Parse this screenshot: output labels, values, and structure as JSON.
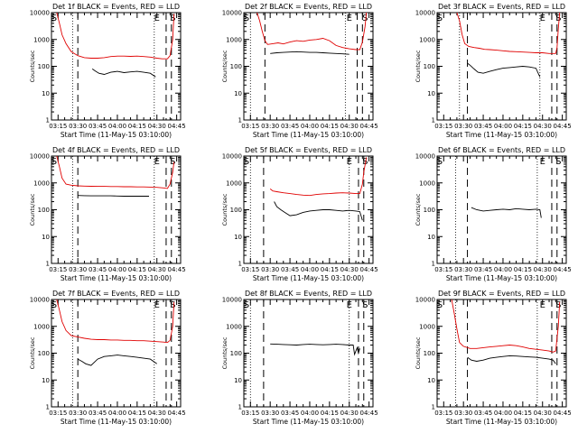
{
  "chart_data": [
    {
      "type": "line",
      "title": "Det 1f BLACK = Events, RED = LLD",
      "xlabel": "Start Time (11-May-15 03:10:00)",
      "ylabel": "Counts/sec",
      "x_tick_labels": [
        "03:15",
        "03:30",
        "03:45",
        "04:00",
        "04:15",
        "04:30",
        "04:45"
      ],
      "y_tick_labels": [
        "1",
        "10",
        "100",
        "1000",
        "10000"
      ],
      "yscale": "log",
      "ylim": [
        1,
        10000
      ],
      "markers": [
        "S",
        "E",
        "S"
      ],
      "series": [
        {
          "name": "Events",
          "color": "#000000",
          "x": [
            "03:41",
            "03:43",
            "03:46",
            "03:50",
            "03:55",
            "04:00",
            "04:05",
            "04:10",
            "04:15",
            "04:20",
            "04:25",
            "04:29"
          ],
          "values": [
            80,
            68,
            55,
            50,
            60,
            65,
            58,
            62,
            65,
            60,
            55,
            40
          ]
        },
        {
          "name": "LLD",
          "color": "#e00000",
          "x": [
            "03:14",
            "03:16",
            "03:18",
            "03:21",
            "03:25",
            "03:30",
            "03:35",
            "03:40",
            "03:45",
            "03:50",
            "03:55",
            "04:00",
            "04:05",
            "04:10",
            "04:15",
            "04:20",
            "04:25",
            "04:30",
            "04:34",
            "04:38",
            "04:40",
            "04:42",
            "04:43"
          ],
          "values": [
            10000,
            4000,
            1500,
            700,
            350,
            250,
            210,
            200,
            200,
            210,
            230,
            240,
            240,
            235,
            240,
            230,
            220,
            200,
            190,
            190,
            250,
            1000,
            9000
          ]
        }
      ]
    },
    {
      "type": "line",
      "title": "Det 2f BLACK = Events, RED = LLD",
      "xlabel": "Start Time (11-May-15 03:10:00)",
      "ylabel": "Counts/sec",
      "x_tick_labels": [
        "03:15",
        "03:30",
        "03:45",
        "04:00",
        "04:15",
        "04:30",
        "04:45"
      ],
      "y_tick_labels": [
        "1",
        "10",
        "100",
        "1000",
        "10000"
      ],
      "yscale": "log",
      "ylim": [
        1,
        10000
      ],
      "markers": [
        "S",
        "E",
        "S"
      ],
      "series": [
        {
          "name": "Events",
          "color": "#000000",
          "x": [
            "03:30",
            "03:35",
            "03:40",
            "03:45",
            "03:50",
            "03:55",
            "04:00",
            "04:05",
            "04:10",
            "04:15",
            "04:20",
            "04:25",
            "04:30"
          ],
          "values": [
            300,
            320,
            330,
            340,
            350,
            340,
            330,
            330,
            320,
            310,
            300,
            290,
            280
          ]
        },
        {
          "name": "LLD",
          "color": "#e00000",
          "x": [
            "03:20",
            "03:22",
            "03:24",
            "03:26",
            "03:28",
            "03:32",
            "03:36",
            "03:40",
            "03:45",
            "03:50",
            "03:55",
            "04:00",
            "04:05",
            "04:10",
            "04:15",
            "04:20",
            "04:25",
            "04:30",
            "04:35",
            "04:38",
            "04:40",
            "04:42",
            "04:43"
          ],
          "values": [
            10000,
            5000,
            2000,
            900,
            650,
            700,
            750,
            680,
            800,
            900,
            850,
            950,
            1000,
            1100,
            900,
            600,
            500,
            450,
            420,
            420,
            800,
            3000,
            10000
          ]
        }
      ]
    },
    {
      "type": "line",
      "title": "Det 3f BLACK = Events, RED = LLD",
      "xlabel": "Start Time (11-May-15 03:10:00)",
      "ylabel": "Counts/sec",
      "x_tick_labels": [
        "03:15",
        "03:30",
        "03:45",
        "04:00",
        "04:15",
        "04:30",
        "04:45"
      ],
      "y_tick_labels": [
        "1",
        "10",
        "100",
        "1000",
        "10000"
      ],
      "yscale": "log",
      "ylim": [
        1,
        10000
      ],
      "markers": [
        "S",
        "E",
        "S"
      ],
      "series": [
        {
          "name": "Events",
          "color": "#000000",
          "x": [
            "03:33",
            "03:35",
            "03:38",
            "03:41",
            "03:45",
            "03:50",
            "03:55",
            "04:00",
            "04:05",
            "04:10",
            "04:15",
            "04:20",
            "04:25",
            "04:28"
          ],
          "values": [
            130,
            110,
            80,
            60,
            55,
            65,
            75,
            85,
            90,
            95,
            100,
            95,
            85,
            40
          ]
        },
        {
          "name": "LLD",
          "color": "#e00000",
          "x": [
            "03:25",
            "03:27",
            "03:29",
            "03:31",
            "03:34",
            "03:38",
            "03:42",
            "03:46",
            "03:50",
            "03:55",
            "04:00",
            "04:05",
            "04:10",
            "04:15",
            "04:20",
            "04:25",
            "04:30",
            "04:35",
            "04:40",
            "04:41",
            "04:42",
            "04:43"
          ],
          "values": [
            10000,
            5000,
            1500,
            700,
            550,
            500,
            470,
            430,
            420,
            400,
            380,
            360,
            350,
            340,
            330,
            320,
            320,
            300,
            300,
            500,
            2500,
            10000
          ]
        }
      ]
    },
    {
      "type": "line",
      "title": "Det 4f BLACK = Events, RED = LLD",
      "xlabel": "Start Time (11-May-15 03:10:00)",
      "ylabel": "Counts/sec",
      "x_tick_labels": [
        "03:15",
        "03:30",
        "03:45",
        "04:00",
        "04:15",
        "04:30",
        "04:45"
      ],
      "y_tick_labels": [
        "1",
        "10",
        "100",
        "1000",
        "10000"
      ],
      "yscale": "log",
      "ylim": [
        1,
        10000
      ],
      "markers": [
        "S",
        "E",
        "S"
      ],
      "series": [
        {
          "name": "Events",
          "color": "#000000",
          "x": [
            "03:30",
            "03:35",
            "03:40",
            "03:45",
            "03:50",
            "03:55",
            "04:00",
            "04:05",
            "04:10",
            "04:15",
            "04:20",
            "04:24"
          ],
          "values": [
            340,
            335,
            330,
            330,
            330,
            330,
            325,
            320,
            320,
            320,
            320,
            320
          ]
        },
        {
          "name": "LLD",
          "color": "#e00000",
          "x": [
            "03:14",
            "03:16",
            "03:18",
            "03:21",
            "03:25",
            "03:30",
            "03:35",
            "03:40",
            "03:45",
            "03:50",
            "03:55",
            "04:00",
            "04:05",
            "04:10",
            "04:15",
            "04:20",
            "04:25",
            "04:30",
            "04:35",
            "04:38",
            "04:40",
            "04:42",
            "04:43"
          ],
          "values": [
            10000,
            4000,
            1500,
            900,
            820,
            780,
            760,
            750,
            740,
            740,
            730,
            730,
            720,
            720,
            710,
            710,
            700,
            680,
            650,
            620,
            900,
            2500,
            6000
          ]
        }
      ]
    },
    {
      "type": "line",
      "title": "Det 5f BLACK = Events, RED = LLD",
      "xlabel": "Start Time (11-May-15 03:10:00)",
      "ylabel": "Counts/sec",
      "x_tick_labels": [
        "03:15",
        "03:30",
        "03:45",
        "04:00",
        "04:15",
        "04:30",
        "04:45"
      ],
      "y_tick_labels": [
        "1",
        "10",
        "100",
        "1000",
        "10000"
      ],
      "yscale": "log",
      "ylim": [
        1,
        10000
      ],
      "markers": [
        "S",
        "E",
        "S"
      ],
      "series": [
        {
          "name": "Events",
          "color": "#000000",
          "x": [
            "03:33",
            "03:35",
            "03:38",
            "03:41",
            "03:45",
            "03:50",
            "03:55",
            "04:00",
            "04:05",
            "04:10",
            "04:15",
            "04:20",
            "04:25",
            "04:30",
            "04:35",
            "04:38",
            "04:40"
          ],
          "values": [
            200,
            130,
            100,
            80,
            60,
            65,
            80,
            90,
            95,
            100,
            100,
            95,
            90,
            95,
            90,
            85,
            40
          ]
        },
        {
          "name": "LLD",
          "color": "#e00000",
          "x": [
            "03:30",
            "03:32",
            "03:35",
            "03:40",
            "03:45",
            "03:50",
            "03:55",
            "04:00",
            "04:05",
            "04:10",
            "04:15",
            "04:20",
            "04:25",
            "04:30",
            "04:35",
            "04:38",
            "04:40",
            "04:41",
            "04:43"
          ],
          "values": [
            600,
            500,
            470,
            430,
            400,
            370,
            350,
            340,
            370,
            390,
            400,
            420,
            430,
            420,
            400,
            400,
            900,
            2500,
            9000
          ]
        }
      ]
    },
    {
      "type": "line",
      "title": "Det 6f BLACK = Events, RED = LLD",
      "xlabel": "Start Time (11-May-15 03:10:00)",
      "ylabel": "Counts/sec",
      "x_tick_labels": [
        "03:15",
        "03:30",
        "03:45",
        "04:00",
        "04:15",
        "04:30",
        "04:45"
      ],
      "y_tick_labels": [
        "1",
        "10",
        "100",
        "1000",
        "10000"
      ],
      "yscale": "log",
      "ylim": [
        1,
        10000
      ],
      "markers": [
        "S",
        "E",
        "S"
      ],
      "series": [
        {
          "name": "Events",
          "color": "#000000",
          "x": [
            "03:36",
            "03:40",
            "03:45",
            "03:50",
            "03:55",
            "04:00",
            "04:05",
            "04:10",
            "04:15",
            "04:20",
            "04:25",
            "04:28",
            "04:29"
          ],
          "values": [
            120,
            100,
            90,
            95,
            100,
            105,
            100,
            110,
            105,
            100,
            105,
            100,
            50
          ]
        }
      ]
    },
    {
      "type": "line",
      "title": "Det 7f BLACK = Events, RED = LLD",
      "xlabel": "Start Time (11-May-15 03:10:00)",
      "ylabel": "Counts/sec",
      "x_tick_labels": [
        "03:15",
        "03:30",
        "03:45",
        "04:00",
        "04:15",
        "04:30",
        "04:45"
      ],
      "y_tick_labels": [
        "1",
        "10",
        "100",
        "1000",
        "10000"
      ],
      "yscale": "log",
      "ylim": [
        1,
        10000
      ],
      "markers": [
        "S",
        "E",
        "S"
      ],
      "series": [
        {
          "name": "Events",
          "color": "#000000",
          "x": [
            "03:30",
            "03:33",
            "03:36",
            "03:40",
            "03:45",
            "03:50",
            "03:55",
            "04:00",
            "04:05",
            "04:10",
            "04:15",
            "04:20",
            "04:25",
            "04:30"
          ],
          "values": [
            60,
            50,
            40,
            35,
            60,
            75,
            80,
            85,
            80,
            75,
            70,
            65,
            60,
            40
          ]
        },
        {
          "name": "LLD",
          "color": "#e00000",
          "x": [
            "03:14",
            "03:16",
            "03:18",
            "03:21",
            "03:25",
            "03:30",
            "03:35",
            "03:40",
            "03:45",
            "03:50",
            "03:55",
            "04:00",
            "04:05",
            "04:10",
            "04:15",
            "04:20",
            "04:25",
            "04:30",
            "04:35",
            "04:38",
            "04:40",
            "04:42",
            "04:43"
          ],
          "values": [
            10000,
            4000,
            1500,
            700,
            450,
            400,
            360,
            330,
            320,
            320,
            310,
            310,
            300,
            300,
            290,
            290,
            280,
            270,
            260,
            250,
            300,
            1000,
            8000
          ]
        }
      ]
    },
    {
      "type": "line",
      "title": "Det 8f BLACK = Events, RED = LLD",
      "xlabel": "Start Time (11-May-15 03:10:00)",
      "ylabel": "Counts/sec",
      "x_tick_labels": [
        "03:15",
        "03:30",
        "03:45",
        "04:00",
        "04:15",
        "04:30",
        "04:45"
      ],
      "y_tick_labels": [
        "1",
        "10",
        "100",
        "1000",
        "10000"
      ],
      "yscale": "log",
      "ylim": [
        1,
        10000
      ],
      "markers": [
        "S",
        "E",
        "S"
      ],
      "series": [
        {
          "name": "Events",
          "color": "#000000",
          "x": [
            "03:30",
            "03:35",
            "03:40",
            "03:45",
            "03:50",
            "03:55",
            "04:00",
            "04:05",
            "04:10",
            "04:15",
            "04:20",
            "04:25",
            "04:30",
            "04:33",
            "04:34",
            "04:36",
            "04:37",
            "04:38"
          ],
          "values": [
            220,
            215,
            210,
            205,
            200,
            210,
            215,
            210,
            205,
            210,
            215,
            210,
            200,
            200,
            90,
            160,
            100,
            150
          ]
        }
      ]
    },
    {
      "type": "line",
      "title": "Det 9f BLACK = Events, RED = LLD",
      "xlabel": "Start Time (11-May-15 03:10:00)",
      "ylabel": "Counts/sec",
      "x_tick_labels": [
        "03:15",
        "03:30",
        "03:45",
        "04:00",
        "04:15",
        "04:30",
        "04:45"
      ],
      "y_tick_labels": [
        "1",
        "10",
        "100",
        "1000",
        "10000"
      ],
      "yscale": "log",
      "ylim": [
        1,
        10000
      ],
      "markers": [
        "S",
        "E",
        "S"
      ],
      "series": [
        {
          "name": "Events",
          "color": "#000000",
          "x": [
            "03:33",
            "03:36",
            "03:40",
            "03:45",
            "03:50",
            "03:55",
            "04:00",
            "04:05",
            "04:10",
            "04:15",
            "04:20",
            "04:25",
            "04:30",
            "04:35",
            "04:38",
            "04:40"
          ],
          "values": [
            70,
            55,
            50,
            55,
            65,
            70,
            75,
            80,
            78,
            75,
            72,
            70,
            65,
            60,
            55,
            40
          ]
        },
        {
          "name": "LLD",
          "color": "#e00000",
          "x": [
            "03:21",
            "03:23",
            "03:25",
            "03:27",
            "03:30",
            "03:35",
            "03:40",
            "03:45",
            "03:50",
            "03:55",
            "04:00",
            "04:05",
            "04:10",
            "04:15",
            "04:20",
            "04:25",
            "04:30",
            "04:35",
            "04:38",
            "04:40",
            "04:42",
            "04:43"
          ],
          "values": [
            10000,
            3000,
            800,
            250,
            180,
            150,
            150,
            160,
            170,
            180,
            190,
            200,
            190,
            170,
            150,
            140,
            130,
            120,
            110,
            120,
            1000,
            8000
          ]
        }
      ]
    }
  ]
}
